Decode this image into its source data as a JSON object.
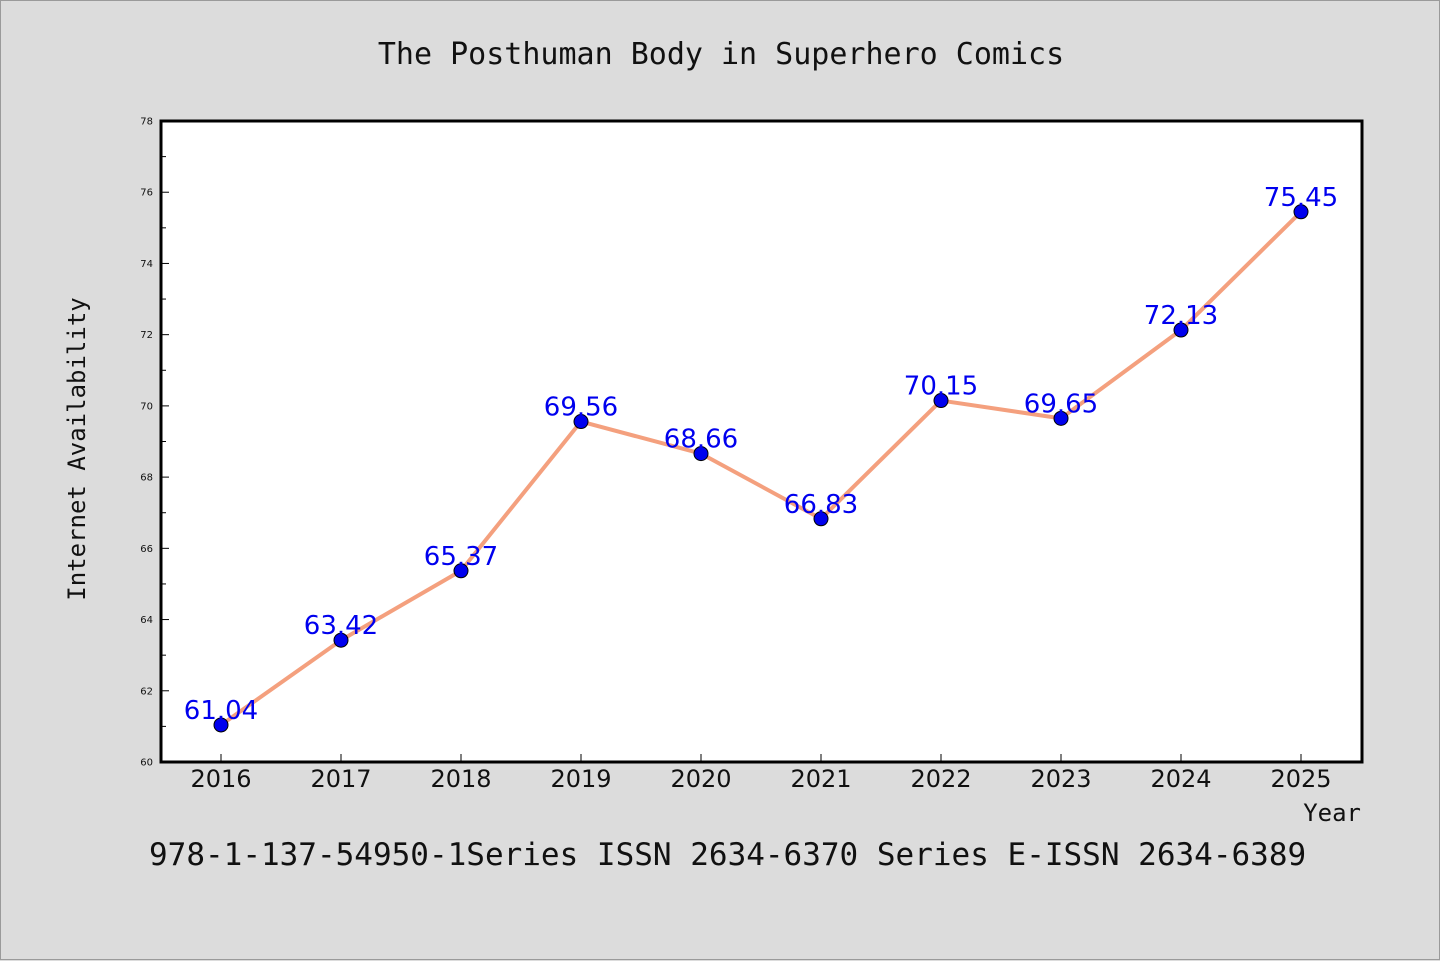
{
  "chart_data": {
    "type": "line",
    "title": "The Posthuman Body in Superhero Comics",
    "xlabel": "Year",
    "ylabel": "Internet Availability",
    "categories": [
      "2016",
      "2017",
      "2018",
      "2019",
      "2020",
      "2021",
      "2022",
      "2023",
      "2024",
      "2025"
    ],
    "values": [
      61.04,
      63.42,
      65.37,
      69.56,
      68.66,
      66.83,
      70.15,
      69.65,
      72.13,
      75.45
    ],
    "data_labels": [
      "61.04",
      "63.42",
      "65.37",
      "69.56",
      "68.66",
      "66.83",
      "70.15",
      "69.65",
      "72.13",
      "75.45"
    ],
    "ylim": [
      60,
      78
    ],
    "yticks": [
      60,
      62,
      64,
      66,
      68,
      70,
      72,
      74,
      76,
      78
    ],
    "grid": false,
    "legend": "none",
    "line_color": "#f4a07e",
    "marker_color": "#0000ee",
    "label_color": "#0000ee"
  },
  "footer": "978-1-137-54950-1Series ISSN 2634-6370 Series E-ISSN 2634-6389"
}
